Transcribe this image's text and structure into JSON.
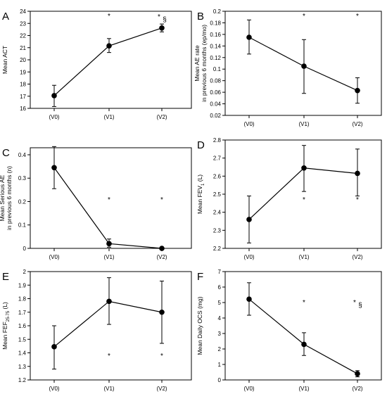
{
  "chart_data": [
    {
      "panel": "A",
      "type": "line",
      "ylabel": "Mean ACT",
      "categories": [
        "(V0)",
        "(V1)",
        "(V2)"
      ],
      "values": [
        17.05,
        21.15,
        22.62
      ],
      "error_low": [
        16.15,
        20.6,
        22.3
      ],
      "error_high": [
        17.9,
        21.75,
        22.95
      ],
      "ylim": [
        16,
        24
      ],
      "yticks": [
        "16",
        "17",
        "18",
        "19",
        "20",
        "21",
        "22",
        "23",
        "24"
      ],
      "annotations": [
        "",
        "*",
        "*§"
      ]
    },
    {
      "panel": "B",
      "type": "line",
      "ylabel": "Mean AE rate in previous 6 months (ep/mo)",
      "categories": [
        "(V0)",
        "(V1)",
        "(V2)"
      ],
      "values": [
        0.155,
        0.105,
        0.063
      ],
      "error_low": [
        0.126,
        0.058,
        0.041
      ],
      "error_high": [
        0.185,
        0.151,
        0.085
      ],
      "ylim": [
        0.02,
        0.2
      ],
      "yticks": [
        "0.02",
        "0.04",
        "0.06",
        "0.08",
        "0.1",
        "0.12",
        "0.14",
        "0.16",
        "0.18",
        "0.2"
      ],
      "annotations": [
        "",
        "*",
        "*"
      ]
    },
    {
      "panel": "C",
      "type": "line",
      "ylabel": "Mean Serious AE in previous 6 months (n)",
      "categories": [
        "(V0)",
        "(V1)",
        "(V2)"
      ],
      "values": [
        0.345,
        0.02,
        0.0
      ],
      "error_low": [
        0.255,
        0.005,
        0.0
      ],
      "error_high": [
        0.435,
        0.04,
        0.0
      ],
      "ylim": [
        0,
        0.43
      ],
      "yticks": [
        "0",
        "0.1",
        "0.2",
        "0.3",
        "0.4"
      ],
      "annotations": [
        "",
        "*",
        "*"
      ]
    },
    {
      "panel": "D",
      "type": "line",
      "ylabel": "Mean FEV1 (L)",
      "categories": [
        "(V0)",
        "(V1)",
        "(V2)"
      ],
      "values": [
        2.36,
        2.645,
        2.615
      ],
      "error_low": [
        2.23,
        2.515,
        2.49
      ],
      "error_high": [
        2.49,
        2.77,
        2.75
      ],
      "ylim": [
        2.2,
        2.8
      ],
      "yticks": [
        "2.2",
        "2.3",
        "2.4",
        "2.5",
        "2.6",
        "2.7",
        "2.8"
      ],
      "annotations": [
        "",
        "*",
        "*"
      ]
    },
    {
      "panel": "E",
      "type": "line",
      "ylabel": "Mean FEF25-75 (L)",
      "categories": [
        "(V0)",
        "(V1)",
        "(V2)"
      ],
      "values": [
        1.445,
        1.78,
        1.7
      ],
      "error_low": [
        1.28,
        1.61,
        1.47
      ],
      "error_high": [
        1.6,
        1.955,
        1.93
      ],
      "ylim": [
        1.2,
        2.0
      ],
      "yticks": [
        "1.2",
        "1.3",
        "1.4",
        "1.5",
        "1.6",
        "1.7",
        "1.8",
        "1.9",
        "2"
      ],
      "annotations": [
        "",
        "*",
        "*"
      ]
    },
    {
      "panel": "F",
      "type": "line",
      "ylabel": "Mean Daily OCS (mg)",
      "categories": [
        "(V0)",
        "(V1)",
        "(V2)"
      ],
      "values": [
        5.22,
        2.3,
        0.4
      ],
      "error_low": [
        4.18,
        1.58,
        0.2
      ],
      "error_high": [
        6.28,
        3.05,
        0.6
      ],
      "ylim": [
        0,
        7
      ],
      "yticks": [
        "0",
        "1",
        "2",
        "3",
        "4",
        "5",
        "6",
        "7"
      ],
      "annotations": [
        "",
        "*",
        "*§"
      ]
    }
  ]
}
